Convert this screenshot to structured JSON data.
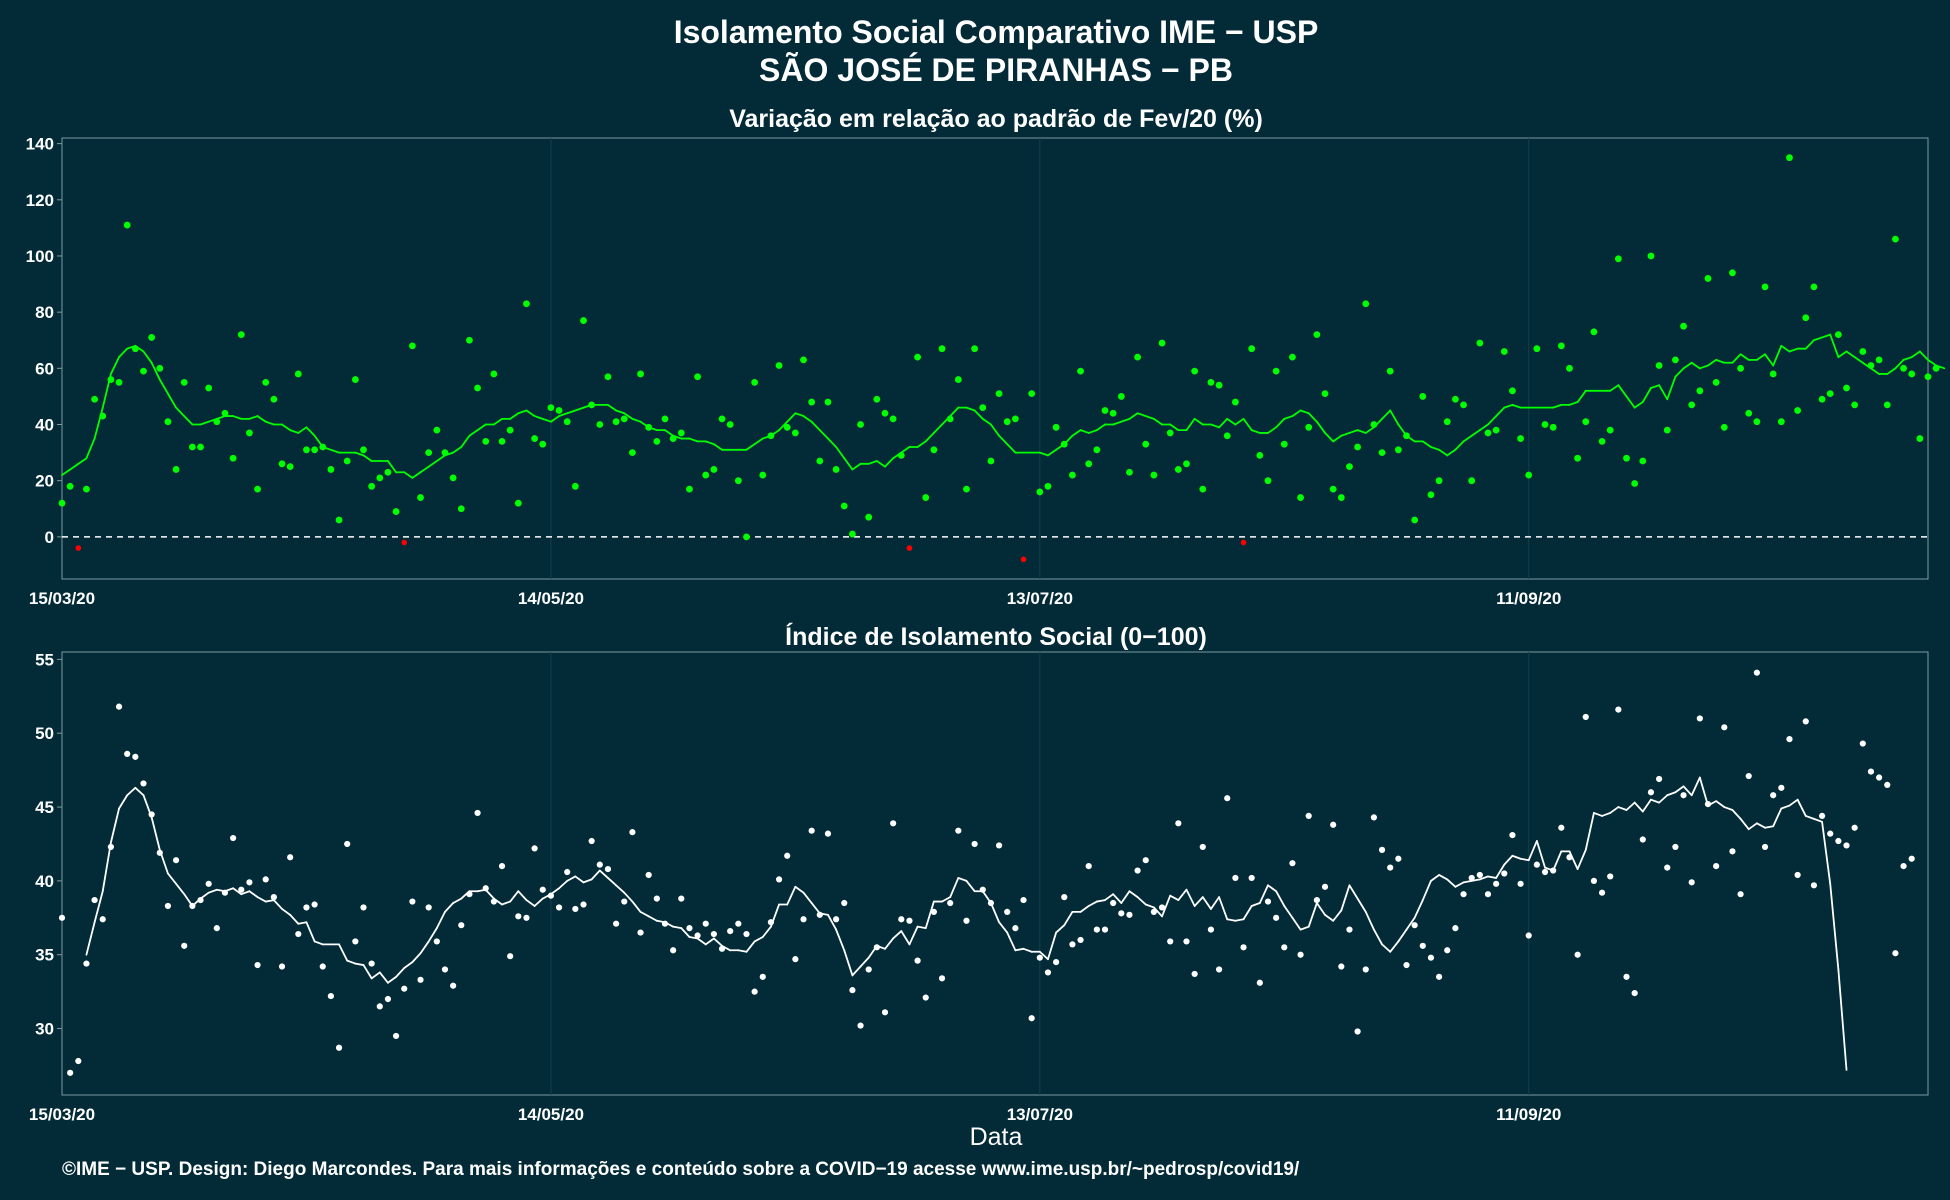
{
  "title_line1": "Isolamento Social Comparativo IME − USP",
  "title_line2": "SÃO JOSÉ DE PIRANHAS − PB",
  "xlabel": "Data",
  "footer": "©IME − USP. Design: Diego Marcondes. Para mais informações e conteúdo sobre a COVID−19 acesse www.ime.usp.br/~pedrosp/covid19/",
  "colors": {
    "background": "#022b37",
    "positive": "#00ff00",
    "negative": "#ff0000",
    "index": "#ffffff",
    "grid": "#0f4250",
    "axis": "#7f9aa3"
  },
  "chart_data": [
    {
      "type": "scatter",
      "title": "Variação em relação ao padrão de Fev/20 (%)",
      "x_start": "15/03/20",
      "x_ticks": [
        "15/03/20",
        "14/05/20",
        "13/07/20",
        "11/09/20"
      ],
      "x_tick_day": [
        0,
        60,
        120,
        180
      ],
      "x_range_days": [
        0,
        229
      ],
      "y_ticks": [
        "0",
        "20",
        "40",
        "60",
        "80",
        "100",
        "120",
        "140"
      ],
      "ylim": [
        -15,
        142
      ],
      "reference_line": 0,
      "series": [
        {
          "kind": "points",
          "values": [
            12,
            18,
            -4,
            17,
            49,
            43,
            56,
            55,
            111,
            67,
            59,
            71,
            60,
            41,
            24,
            55,
            32,
            32,
            53,
            41,
            44,
            28,
            72,
            37,
            17,
            55,
            49,
            26,
            25,
            58,
            31,
            31,
            32,
            24,
            6,
            27,
            56,
            31,
            18,
            21,
            23,
            9,
            -2,
            68,
            14,
            30,
            38,
            30,
            21,
            10,
            70,
            53,
            34,
            58,
            34,
            38,
            12,
            83,
            35,
            33,
            46,
            45,
            41,
            18,
            77,
            47,
            40,
            57,
            41,
            42,
            30,
            58,
            39,
            34,
            42,
            35,
            37,
            17,
            57,
            22,
            24,
            42,
            40,
            20,
            0,
            55,
            22,
            36,
            61,
            39,
            37,
            63,
            48,
            27,
            48,
            24,
            11,
            1,
            40,
            7,
            49,
            44,
            42,
            29,
            -4,
            64,
            14,
            31,
            67,
            42,
            56,
            17,
            67,
            46,
            27,
            51,
            41,
            42,
            -8,
            51,
            16,
            18,
            39,
            33,
            22,
            59,
            26,
            31,
            45,
            44,
            50,
            23,
            64,
            33,
            22,
            69,
            37,
            24,
            26,
            59,
            17,
            55,
            54,
            36,
            48,
            -2,
            67,
            29,
            20,
            59,
            33,
            64,
            14,
            39,
            72,
            51,
            17,
            14,
            25,
            32,
            83,
            40,
            30,
            59,
            31,
            36,
            6,
            50,
            15,
            20,
            41,
            49,
            47,
            20,
            69,
            37,
            38,
            66,
            52,
            35,
            22,
            67,
            40,
            39,
            68,
            60,
            28,
            41,
            73,
            34,
            38,
            99,
            28,
            19,
            27,
            100,
            61,
            38,
            63,
            75,
            47,
            52,
            92,
            55,
            39,
            94,
            60,
            44,
            41,
            89,
            58,
            41,
            135,
            45,
            78,
            89,
            49,
            51,
            72,
            53,
            47,
            66,
            61,
            63,
            47,
            106,
            60,
            58,
            35,
            57,
            60
          ]
        },
        {
          "kind": "moving_average",
          "values": [
            22,
            24,
            26,
            28,
            35,
            46,
            58,
            64,
            67,
            68,
            66,
            62,
            56,
            51,
            46,
            43,
            40,
            40,
            41,
            42,
            43,
            43,
            42,
            42,
            43,
            41,
            40,
            40,
            38,
            37,
            39,
            36,
            32,
            31,
            30,
            30,
            30,
            29,
            27,
            27,
            27,
            23,
            23,
            21,
            23,
            25,
            27,
            29,
            30,
            32,
            36,
            38,
            40,
            40,
            42,
            42,
            44,
            45,
            43,
            42,
            41,
            43,
            44,
            45,
            46,
            47,
            47,
            47,
            45,
            44,
            42,
            41,
            39,
            38,
            38,
            36,
            35,
            35,
            34,
            34,
            33,
            31,
            31,
            31,
            31,
            33,
            35,
            36,
            38,
            41,
            44,
            43,
            41,
            38,
            35,
            32,
            28,
            24,
            26,
            26,
            27,
            25,
            28,
            30,
            32,
            32,
            34,
            37,
            40,
            43,
            46,
            46,
            45,
            42,
            40,
            36,
            33,
            30,
            30,
            30,
            30,
            29,
            31,
            33,
            36,
            38,
            37,
            38,
            40,
            40,
            41,
            42,
            44,
            43,
            42,
            40,
            40,
            38,
            38,
            42,
            40,
            40,
            39,
            42,
            40,
            42,
            38,
            37,
            37,
            39,
            42,
            43,
            45,
            44,
            41,
            37,
            34,
            36,
            37,
            38,
            37,
            39,
            42,
            45,
            40,
            36,
            34,
            34,
            32,
            31,
            29,
            31,
            34,
            36,
            38,
            40,
            43,
            46,
            47,
            46,
            46,
            46,
            46,
            46,
            47,
            47,
            48,
            52,
            52,
            52,
            52,
            54,
            50,
            46,
            48,
            53,
            54,
            49,
            57,
            60,
            62,
            60,
            61,
            63,
            62,
            62,
            65,
            63,
            63,
            65,
            61,
            68,
            66,
            67,
            67,
            70,
            71,
            72,
            64,
            66,
            64,
            62,
            60,
            58,
            58,
            60,
            63,
            64,
            66,
            63,
            61,
            60
          ]
        }
      ]
    },
    {
      "type": "scatter",
      "title": "Índice de Isolamento Social (0−100)",
      "x_start": "15/03/20",
      "x_ticks": [
        "15/03/20",
        "14/05/20",
        "13/07/20",
        "11/09/20"
      ],
      "x_tick_day": [
        0,
        60,
        120,
        180
      ],
      "x_range_days": [
        0,
        229
      ],
      "y_ticks": [
        "30",
        "35",
        "40",
        "45",
        "50",
        "55"
      ],
      "ylim": [
        25.5,
        55.5
      ],
      "series": [
        {
          "kind": "points",
          "values": [
            37.5,
            27,
            27.8,
            34.4,
            38.7,
            37.4,
            42.3,
            51.8,
            48.6,
            48.4,
            46.6,
            44.5,
            41.9,
            38.3,
            41.4,
            35.6,
            38.3,
            38.7,
            39.8,
            36.8,
            39.2,
            42.9,
            39.4,
            39.9,
            34.3,
            40.1,
            38.9,
            34.2,
            41.6,
            36.4,
            38.2,
            38.4,
            34.2,
            32.2,
            28.7,
            42.5,
            35.9,
            38.2,
            34.4,
            31.5,
            32,
            29.5,
            32.7,
            38.6,
            33.3,
            38.2,
            35.9,
            34,
            32.9,
            37,
            39.1,
            44.6,
            39.5,
            38.6,
            41,
            34.9,
            37.6,
            37.5,
            42.2,
            39.4,
            39,
            38.2,
            40.6,
            38.1,
            38.4,
            42.7,
            41.1,
            40.8,
            37.1,
            38.6,
            43.3,
            36.5,
            40.4,
            38.8,
            37.1,
            35.3,
            38.8,
            36.8,
            36.3,
            37.1,
            36.4,
            35.4,
            36.6,
            37.1,
            36.4,
            32.5,
            33.5,
            37.2,
            40.1,
            41.7,
            34.7,
            37.4,
            43.4,
            37.7,
            43.2,
            37.4,
            38.5,
            32.6,
            30.2,
            34,
            35.5,
            31.1,
            43.9,
            37.4,
            37.3,
            34.6,
            32.1,
            37.9,
            33.4,
            38.5,
            43.4,
            37.3,
            42.5,
            39.4,
            38.5,
            42.4,
            37.9,
            36.8,
            38.7,
            30.7,
            34.8,
            33.8,
            34.5,
            38.9,
            35.7,
            36,
            41,
            36.7,
            36.7,
            38.5,
            37.8,
            37.7,
            40.7,
            41.4,
            37.9,
            38.2,
            35.9,
            43.9,
            35.9,
            33.7,
            42.3,
            36.7,
            34,
            45.6,
            40.2,
            35.5,
            40.2,
            33.1,
            38.6,
            37.5,
            35.5,
            41.2,
            35,
            44.4,
            38.7,
            39.6,
            43.8,
            34.2,
            36.7,
            29.8,
            34,
            44.3,
            42.1,
            40.9,
            41.5,
            34.3,
            37,
            35.6,
            34.8,
            33.5,
            35.3,
            36.8,
            39.1,
            40.2,
            40.4,
            39.1,
            39.8,
            40.5,
            43.1,
            39.8,
            36.3,
            41.1,
            40.6,
            40.7,
            43.6,
            41.6,
            35,
            51.1,
            40,
            39.2,
            40.3,
            51.6,
            33.5,
            32.4,
            42.8,
            46,
            46.9,
            40.9,
            42.3,
            45.8,
            39.9,
            51,
            45.2,
            41,
            50.4,
            42,
            39.1,
            47.1,
            54.1,
            42.3,
            45.8,
            46.3,
            49.6,
            40.4,
            50.8,
            39.7,
            44.4,
            43.2,
            42.7,
            42.4,
            43.6,
            49.3,
            47.4,
            47,
            46.5,
            35.1,
            41,
            41.5
          ]
        },
        {
          "kind": "moving_average",
          "values": [
            null,
            null,
            null,
            35,
            37.2,
            39.3,
            42.6,
            44.9,
            45.8,
            46.3,
            45.8,
            44.3,
            42.1,
            40.5,
            39.8,
            39.1,
            38.3,
            38.8,
            39.2,
            39.4,
            39.3,
            39.5,
            39.1,
            39.3,
            38.9,
            38.6,
            38.7,
            38.1,
            37.7,
            37.1,
            37.2,
            35.9,
            35.7,
            35.7,
            35.7,
            34.6,
            34.4,
            34.3,
            33.4,
            33.8,
            33.1,
            33.5,
            34.1,
            34.5,
            35.1,
            35.9,
            36.8,
            37.9,
            38.5,
            38.8,
            39.3,
            39.3,
            39.4,
            38.8,
            38.4,
            38.6,
            39.3,
            38.7,
            38.3,
            38.8,
            39.1,
            39.5,
            40,
            40.3,
            39.9,
            40.1,
            40.7,
            40.2,
            39.7,
            39.2,
            38.6,
            37.9,
            37.6,
            37.3,
            37.2,
            36.9,
            36.8,
            36.2,
            36.1,
            35.7,
            36.1,
            35.6,
            35.3,
            35.3,
            35.2,
            35.9,
            36.2,
            36.9,
            38.4,
            38.4,
            39.6,
            39.2,
            38.5,
            37.8,
            37.7,
            36.7,
            35.3,
            33.6,
            34.2,
            34.8,
            35.6,
            35.4,
            36.1,
            36.6,
            35.7,
            36.9,
            36.8,
            38.6,
            38.6,
            38.9,
            40.2,
            40,
            39.3,
            39.3,
            38.5,
            37.2,
            36.5,
            35.3,
            35.4,
            35.2,
            35.2,
            34.7,
            36.5,
            37,
            37.9,
            37.9,
            38.3,
            38.6,
            38.7,
            39.1,
            38.5,
            39.3,
            38.9,
            38.4,
            38.2,
            37.6,
            39,
            38.7,
            39.4,
            38.3,
            38.9,
            38.1,
            38.9,
            37.4,
            37.3,
            37.4,
            38.3,
            38.5,
            39.7,
            39.3,
            38.3,
            37.5,
            36.7,
            36.9,
            38.5,
            37.7,
            37.3,
            38,
            39.7,
            38.8,
            37.9,
            36.7,
            35.7,
            35.2,
            35.9,
            36.7,
            37.5,
            38.7,
            40,
            40.4,
            40.1,
            39.6,
            39.9,
            40,
            40.1,
            40.3,
            40.2,
            41.1,
            41.7,
            41.5,
            41.4,
            42.7,
            40.9,
            40.7,
            42,
            42,
            40.8,
            42.1,
            44.6,
            44.4,
            44.6,
            45,
            44.8,
            45.3,
            44.7,
            45.5,
            45.3,
            45.8,
            46,
            46.4,
            45.8,
            47,
            45.1,
            45.4,
            45,
            44.8,
            44.2,
            43.5,
            43.9,
            43.6,
            43.7,
            44.9,
            45.1,
            45.5,
            44.4,
            44.2,
            44,
            39.8,
            34,
            27.2
          ]
        }
      ]
    }
  ]
}
